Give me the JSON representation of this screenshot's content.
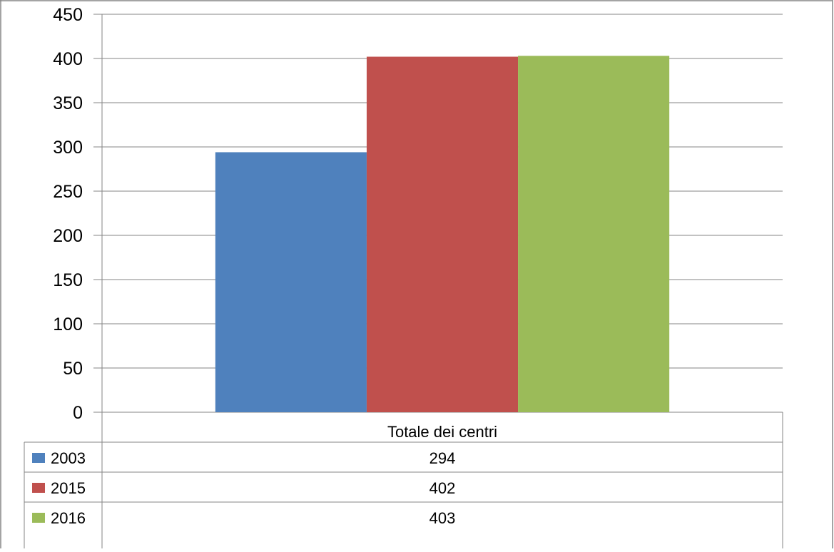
{
  "chart_data": {
    "type": "bar",
    "categories": [
      "Totale dei centri"
    ],
    "series": [
      {
        "name": "2003",
        "values": [
          294
        ],
        "color": "#4f81bd"
      },
      {
        "name": "2015",
        "values": [
          402
        ],
        "color": "#c0504d"
      },
      {
        "name": "2016",
        "values": [
          403
        ],
        "color": "#9bbb59"
      }
    ],
    "ylim": [
      0,
      450
    ],
    "yticks": [
      0,
      50,
      100,
      150,
      200,
      250,
      300,
      350,
      400,
      450
    ],
    "grid": true,
    "legend": "data-table-left",
    "data_table": true,
    "colors": {
      "grid": "#868686",
      "axis": "#868686",
      "text": "#000000"
    }
  }
}
